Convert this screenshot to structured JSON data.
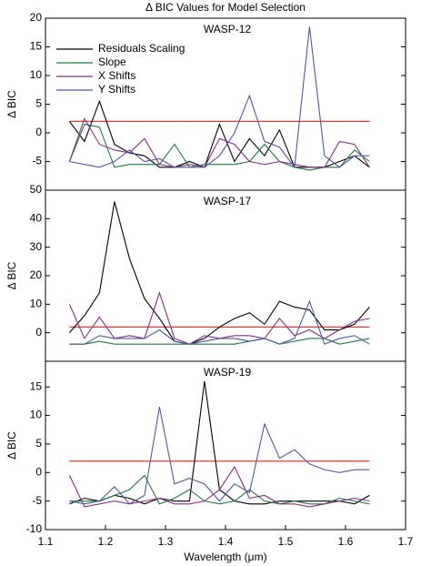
{
  "title": "Δ BIC Values for Model Selection",
  "chart_data": [
    {
      "type": "line",
      "subtitle": "WASP-12",
      "ylabel": "Δ BIC",
      "legend": "upper left",
      "x": [
        1.14,
        1.165,
        1.19,
        1.215,
        1.24,
        1.265,
        1.29,
        1.315,
        1.34,
        1.365,
        1.39,
        1.415,
        1.44,
        1.465,
        1.49,
        1.515,
        1.54,
        1.565,
        1.59,
        1.615,
        1.64
      ],
      "xlim": [
        1.1,
        1.7
      ],
      "ylim": [
        -10,
        20
      ],
      "yticks": [
        -5,
        0,
        5,
        10,
        15,
        20
      ],
      "hline": {
        "y": 2,
        "xmin": 1.14,
        "xmax": 1.64,
        "color": "#e83a3a"
      },
      "series": [
        {
          "name": "Residuals Scaling",
          "color": "#000000",
          "values": [
            2,
            -1.5,
            5.5,
            -2,
            -3.5,
            -4,
            -6,
            -6,
            -5,
            -6,
            1.5,
            -5,
            -1,
            -4,
            0.5,
            -6,
            -6,
            -6,
            -5,
            -4,
            -6
          ]
        },
        {
          "name": "Slope",
          "color": "#1f7a3c",
          "values": [
            -5,
            1.5,
            1,
            -6,
            -5.5,
            -5.5,
            -5.5,
            -2,
            -6,
            -5.5,
            -5.5,
            -5.5,
            -5,
            -2,
            -5,
            -6,
            -6.5,
            -6,
            -6,
            -3,
            -5
          ]
        },
        {
          "name": "X Shifts",
          "color": "#8a2a8a",
          "values": [
            -5,
            2.5,
            -2,
            -3,
            -3.5,
            -1,
            -5.5,
            -6,
            -5.5,
            -6,
            -1,
            -2,
            -5,
            -5.5,
            -5,
            -5.5,
            -6,
            -6,
            -1.5,
            -2,
            -6
          ]
        },
        {
          "name": "Y Shifts",
          "color": "#4a5aa8",
          "values": [
            -5,
            -5.5,
            -6,
            -5,
            -3,
            -5,
            -4.5,
            -6,
            -6,
            -6,
            -4,
            0,
            6.5,
            -1.5,
            -2.5,
            -6,
            18.5,
            -4,
            -6,
            -4,
            -4
          ]
        }
      ]
    },
    {
      "type": "line",
      "subtitle": "WASP-17",
      "ylabel": "Δ BIC",
      "x": [
        1.14,
        1.165,
        1.19,
        1.215,
        1.24,
        1.265,
        1.29,
        1.315,
        1.34,
        1.365,
        1.39,
        1.415,
        1.44,
        1.465,
        1.49,
        1.515,
        1.54,
        1.565,
        1.59,
        1.615,
        1.64
      ],
      "xlim": [
        1.1,
        1.7
      ],
      "ylim": [
        -10,
        50
      ],
      "yticks": [
        0,
        10,
        20,
        30,
        40,
        50
      ],
      "hline": {
        "y": 2,
        "xmin": 1.14,
        "xmax": 1.64,
        "color": "#e83a3a"
      },
      "series": [
        {
          "color": "#000000",
          "values": [
            0,
            6,
            14,
            46,
            26,
            12,
            5,
            -3,
            -4,
            -2,
            2,
            5,
            7,
            3,
            11,
            9,
            8,
            1,
            1,
            3,
            9
          ]
        },
        {
          "color": "#1f7a3c",
          "values": [
            -4,
            -4,
            -3,
            -4,
            -4,
            -4,
            -4,
            -4,
            -4,
            -4,
            -4,
            -4,
            -3,
            -2,
            -4,
            -3,
            -2,
            -2,
            -4,
            -3,
            -2
          ]
        },
        {
          "color": "#8a2a8a",
          "values": [
            10,
            -2,
            5.5,
            -2,
            -1,
            -2,
            14,
            -2,
            -4,
            -1,
            -2,
            -1,
            -1,
            -2,
            5,
            -1,
            1,
            -2,
            1,
            4,
            5
          ]
        },
        {
          "color": "#4a5aa8",
          "values": [
            -4,
            -4,
            -1,
            -2,
            -2,
            -2,
            1,
            -3,
            -4,
            -3,
            -2,
            -2,
            -3,
            -2,
            -4,
            -2,
            11,
            -4,
            -2,
            -1,
            -4
          ]
        }
      ]
    },
    {
      "type": "line",
      "subtitle": "WASP-19",
      "ylabel": "Δ BIC",
      "xlabel": "Wavelength (μm)",
      "x": [
        1.14,
        1.165,
        1.19,
        1.215,
        1.24,
        1.265,
        1.29,
        1.315,
        1.34,
        1.365,
        1.39,
        1.415,
        1.44,
        1.465,
        1.49,
        1.515,
        1.54,
        1.565,
        1.59,
        1.615,
        1.64
      ],
      "xlim": [
        1.1,
        1.7
      ],
      "xticks": [
        1.1,
        1.2,
        1.3,
        1.4,
        1.5,
        1.6,
        1.7
      ],
      "ylim": [
        -10,
        19.5
      ],
      "yticks": [
        -10,
        -5,
        0,
        5,
        10,
        15
      ],
      "hline": {
        "y": 2,
        "xmin": 1.14,
        "xmax": 1.64,
        "color": "#e83a3a"
      },
      "series": [
        {
          "color": "#000000",
          "values": [
            -5.5,
            -4.5,
            -5,
            -4,
            -4.5,
            -5.5,
            -4.5,
            -5,
            -5,
            16,
            -3,
            -5,
            -5.5,
            -5.5,
            -5,
            -5,
            -5,
            -5,
            -5,
            -5.5,
            -4
          ]
        },
        {
          "color": "#1f7a3c",
          "values": [
            -5,
            -5,
            -5,
            -4,
            -3,
            -0.5,
            -5.5,
            -4.5,
            -3,
            -5,
            -5.5,
            -5,
            -3,
            -5,
            -5.5,
            -5,
            -5.5,
            -5.5,
            -4.5,
            -5,
            -5.5
          ]
        },
        {
          "color": "#8a2a8a",
          "values": [
            -0.5,
            -6,
            -5.5,
            -5,
            -5.5,
            -5,
            -4.5,
            -5.5,
            -5.5,
            -5,
            -3,
            1,
            -4.5,
            -4,
            -5.5,
            -5.5,
            -6,
            -5.5,
            -5,
            -4.5,
            -5
          ]
        },
        {
          "color": "#4a5aa8",
          "values": [
            -5,
            -5.5,
            -5,
            -2.5,
            -5.5,
            -4,
            11.5,
            -2,
            -1,
            -2,
            -5,
            -2,
            -3.5,
            8.5,
            2.5,
            4,
            1.5,
            0.5,
            0,
            0.5,
            0.5
          ]
        }
      ]
    }
  ]
}
